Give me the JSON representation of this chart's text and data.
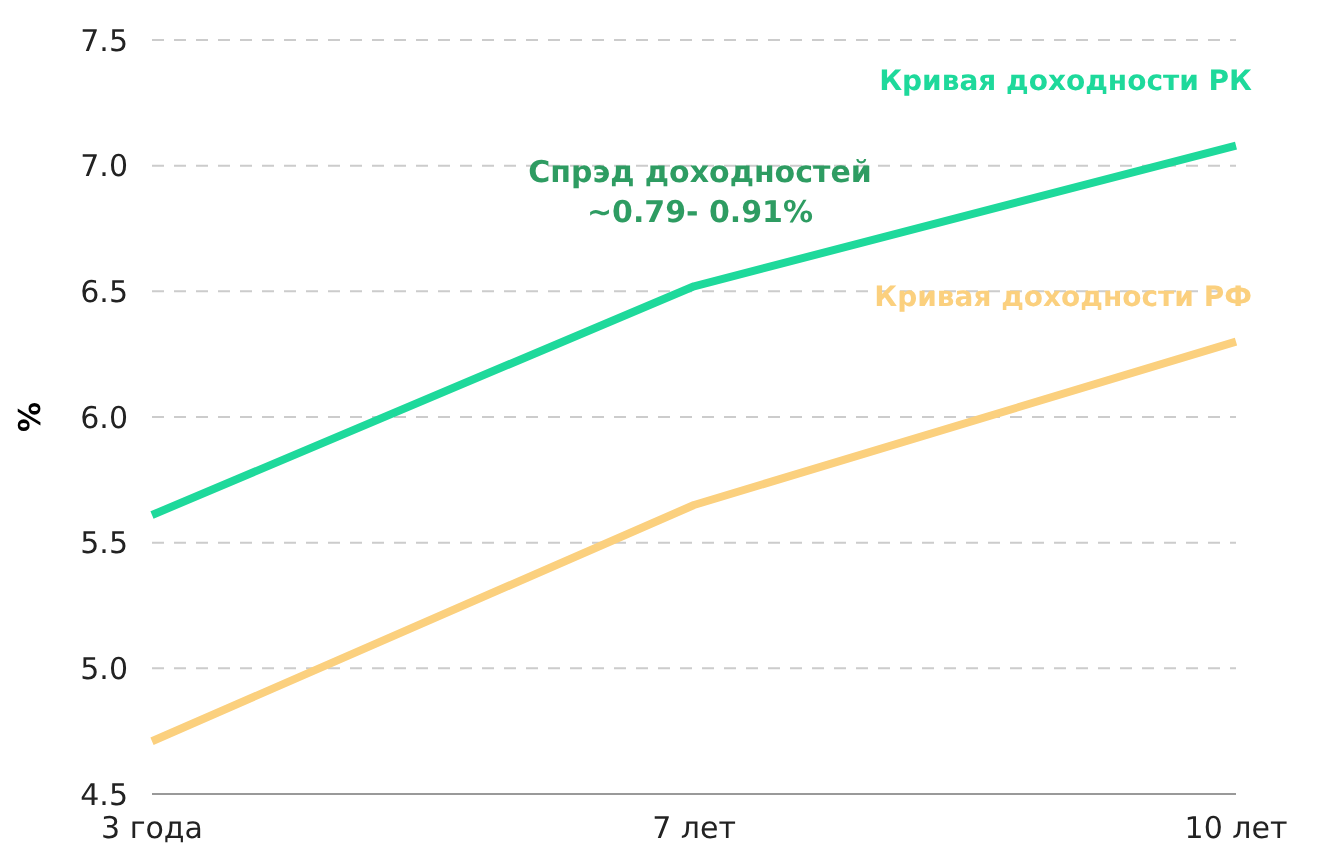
{
  "chart_data": {
    "type": "line",
    "ylabel": "%",
    "categories": [
      "3 года",
      "7 лет",
      "10 лет"
    ],
    "series": [
      {
        "name": "Кривая доходности РК",
        "color": "#1ed99b",
        "values": [
          5.61,
          6.52,
          7.08
        ]
      },
      {
        "name": "Кривая доходности РФ",
        "color": "#fbd07e",
        "values": [
          4.71,
          5.65,
          6.3
        ]
      }
    ],
    "ylim": [
      4.5,
      7.5
    ],
    "yticks": [
      4.5,
      {
        "value": 5,
        "label": "5.0"
      },
      5.5,
      {
        "value": 6,
        "label": "6.0"
      },
      6.5,
      {
        "value": 7,
        "label": "7.0"
      },
      7.5
    ],
    "grid": "y",
    "legend": false,
    "marker": "none",
    "line_style": "solid",
    "annotations": [
      "Спрэд доходностей\n~0.79- 0.91%"
    ]
  }
}
